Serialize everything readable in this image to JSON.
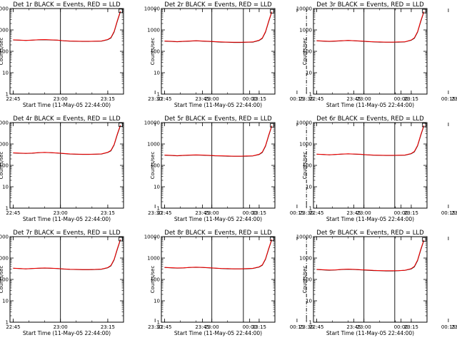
{
  "chart_data": {
    "type": "line",
    "layout": "3x3 grid",
    "x_tick_labels": [
      "22:45",
      "23:00",
      "23:15",
      "23:30",
      "23:45",
      "00:00",
      "00:15"
    ],
    "x_range_minutes_after_start": [
      -1,
      35
    ],
    "y_scale": "log",
    "y_range": [
      1,
      10000
    ],
    "y_tick_labels": [
      "1",
      "10",
      "100",
      "1000",
      "10000"
    ],
    "ylabel": "Counts/sec",
    "xlabel": "Start Time (11-May-05 22:44:00)",
    "legend_text": "BLACK = Events, RED = LLD",
    "series_colors": {
      "events": "#000000",
      "lld": "#ff0000"
    },
    "vertical_marker_times": {
      "solid": [
        "23:00",
        "23:58"
      ],
      "dash_dot": [
        "00:18"
      ]
    },
    "series_x_minutes": [
      0,
      2,
      4,
      6,
      8,
      10,
      12,
      14,
      16,
      18,
      20,
      22,
      24,
      26,
      28,
      30,
      31,
      32,
      33,
      34
    ],
    "panels": [
      {
        "title": "Det 1r",
        "events": [
          340,
          330,
          320,
          330,
          345,
          350,
          340,
          330,
          310,
          300,
          295,
          290,
          290,
          295,
          300,
          350,
          420,
          800,
          2500,
          7000
        ],
        "lld": [
          345,
          335,
          325,
          335,
          350,
          355,
          345,
          335,
          315,
          305,
          300,
          295,
          295,
          300,
          305,
          360,
          440,
          850,
          2700,
          7500
        ]
      },
      {
        "title": "Det 2r",
        "events": [
          300,
          290,
          280,
          290,
          300,
          310,
          300,
          290,
          280,
          270,
          265,
          260,
          260,
          265,
          270,
          320,
          400,
          780,
          2400,
          6800
        ],
        "lld": [
          305,
          295,
          285,
          295,
          305,
          315,
          305,
          295,
          285,
          275,
          270,
          265,
          265,
          270,
          275,
          330,
          420,
          830,
          2600,
          7200
        ]
      },
      {
        "title": "Det 3r",
        "events": [
          310,
          300,
          290,
          300,
          310,
          320,
          310,
          300,
          285,
          275,
          270,
          265,
          265,
          270,
          275,
          330,
          410,
          790,
          2450,
          6900
        ],
        "lld": [
          315,
          305,
          295,
          305,
          315,
          325,
          315,
          305,
          290,
          280,
          275,
          270,
          270,
          275,
          280,
          340,
          430,
          840,
          2650,
          7300
        ]
      },
      {
        "title": "Det 4r",
        "events": [
          380,
          370,
          360,
          370,
          390,
          400,
          390,
          375,
          355,
          340,
          330,
          325,
          325,
          330,
          340,
          400,
          480,
          900,
          2700,
          7200
        ],
        "lld": [
          385,
          375,
          365,
          375,
          395,
          405,
          395,
          380,
          360,
          345,
          335,
          330,
          330,
          335,
          345,
          410,
          500,
          950,
          2900,
          7600
        ]
      },
      {
        "title": "Det 5r",
        "events": [
          300,
          290,
          280,
          290,
          300,
          305,
          300,
          290,
          280,
          275,
          270,
          265,
          265,
          270,
          275,
          320,
          400,
          780,
          2400,
          6800
        ],
        "lld": [
          305,
          295,
          285,
          295,
          305,
          310,
          305,
          295,
          285,
          280,
          275,
          270,
          270,
          275,
          280,
          330,
          420,
          830,
          2600,
          7200
        ]
      },
      {
        "title": "Det 6r",
        "events": [
          330,
          320,
          310,
          320,
          335,
          345,
          335,
          325,
          310,
          300,
          295,
          290,
          290,
          295,
          300,
          350,
          430,
          820,
          2500,
          7000
        ],
        "lld": [
          335,
          325,
          315,
          325,
          340,
          350,
          340,
          330,
          315,
          305,
          300,
          295,
          295,
          300,
          305,
          360,
          450,
          870,
          2700,
          7400
        ]
      },
      {
        "title": "Det 7r",
        "events": [
          330,
          320,
          310,
          320,
          330,
          340,
          330,
          320,
          305,
          295,
          290,
          285,
          285,
          290,
          300,
          350,
          430,
          820,
          2500,
          7000
        ],
        "lld": [
          335,
          325,
          315,
          325,
          335,
          345,
          335,
          325,
          310,
          300,
          295,
          290,
          290,
          295,
          305,
          360,
          450,
          870,
          2700,
          7400
        ]
      },
      {
        "title": "Det 8r",
        "events": [
          360,
          350,
          340,
          345,
          360,
          370,
          360,
          350,
          335,
          320,
          315,
          310,
          310,
          315,
          325,
          380,
          460,
          870,
          2600,
          7100
        ],
        "lld": [
          365,
          355,
          345,
          350,
          365,
          375,
          365,
          355,
          340,
          325,
          320,
          315,
          315,
          320,
          330,
          390,
          480,
          920,
          2800,
          7500
        ]
      },
      {
        "title": "Det 9r",
        "events": [
          290,
          280,
          270,
          275,
          290,
          300,
          290,
          280,
          270,
          260,
          255,
          250,
          250,
          255,
          265,
          310,
          390,
          760,
          2350,
          6700
        ],
        "lld": [
          295,
          285,
          275,
          280,
          295,
          305,
          295,
          285,
          275,
          265,
          260,
          255,
          255,
          260,
          270,
          320,
          410,
          810,
          2550,
          7100
        ]
      }
    ]
  }
}
